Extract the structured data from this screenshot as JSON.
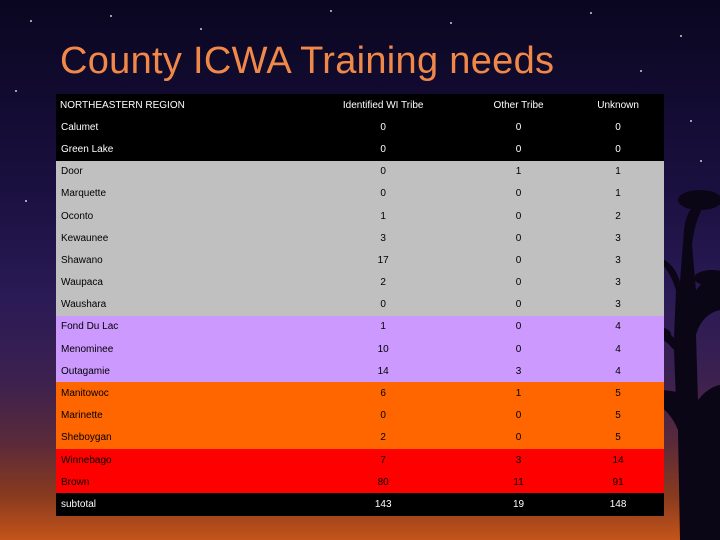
{
  "slide": {
    "title": "County ICWA Training needs"
  },
  "table": {
    "headers": [
      "NORTHEASTERN REGION",
      "Identified WI Tribe",
      "Other Tribe",
      "Unknown"
    ],
    "rows": [
      {
        "county": "Calumet",
        "identified": "0",
        "other": "0",
        "unknown": "0",
        "group": "black"
      },
      {
        "county": "Green Lake",
        "identified": "0",
        "other": "0",
        "unknown": "0",
        "group": "black"
      },
      {
        "county": "Door",
        "identified": "0",
        "other": "1",
        "unknown": "1",
        "group": "gray"
      },
      {
        "county": "Marquette",
        "identified": "0",
        "other": "0",
        "unknown": "1",
        "group": "gray"
      },
      {
        "county": "Oconto",
        "identified": "1",
        "other": "0",
        "unknown": "2",
        "group": "gray"
      },
      {
        "county": "Kewaunee",
        "identified": "3",
        "other": "0",
        "unknown": "3",
        "group": "gray"
      },
      {
        "county": "Shawano",
        "identified": "17",
        "other": "0",
        "unknown": "3",
        "group": "gray"
      },
      {
        "county": "Waupaca",
        "identified": "2",
        "other": "0",
        "unknown": "3",
        "group": "gray"
      },
      {
        "county": "Waushara",
        "identified": "0",
        "other": "0",
        "unknown": "3",
        "group": "gray"
      },
      {
        "county": "Fond Du Lac",
        "identified": "1",
        "other": "0",
        "unknown": "4",
        "group": "purple"
      },
      {
        "county": "Menominee",
        "identified": "10",
        "other": "0",
        "unknown": "4",
        "group": "purple"
      },
      {
        "county": "Outagamie",
        "identified": "14",
        "other": "3",
        "unknown": "4",
        "group": "purple"
      },
      {
        "county": "Manitowoc",
        "identified": "6",
        "other": "1",
        "unknown": "5",
        "group": "orange"
      },
      {
        "county": "Marinette",
        "identified": "0",
        "other": "0",
        "unknown": "5",
        "group": "orange"
      },
      {
        "county": "Sheboygan",
        "identified": "2",
        "other": "0",
        "unknown": "5",
        "group": "orange"
      },
      {
        "county": "Winnebago",
        "identified": "7",
        "other": "3",
        "unknown": "14",
        "group": "red"
      },
      {
        "county": "Brown",
        "identified": "80",
        "other": "11",
        "unknown": "91",
        "group": "red"
      },
      {
        "county": "subtotal",
        "identified": "143",
        "other": "19",
        "unknown": "148",
        "group": "black"
      }
    ]
  },
  "colors": {
    "title": "#f0884a",
    "black": "#000000",
    "gray": "#c0c0c0",
    "purple": "#cc99ff",
    "orange": "#ff6600",
    "red": "#ff0000"
  },
  "decor": {
    "background": "night-sky-sunset",
    "tree": "silhouette-tree-icon"
  }
}
